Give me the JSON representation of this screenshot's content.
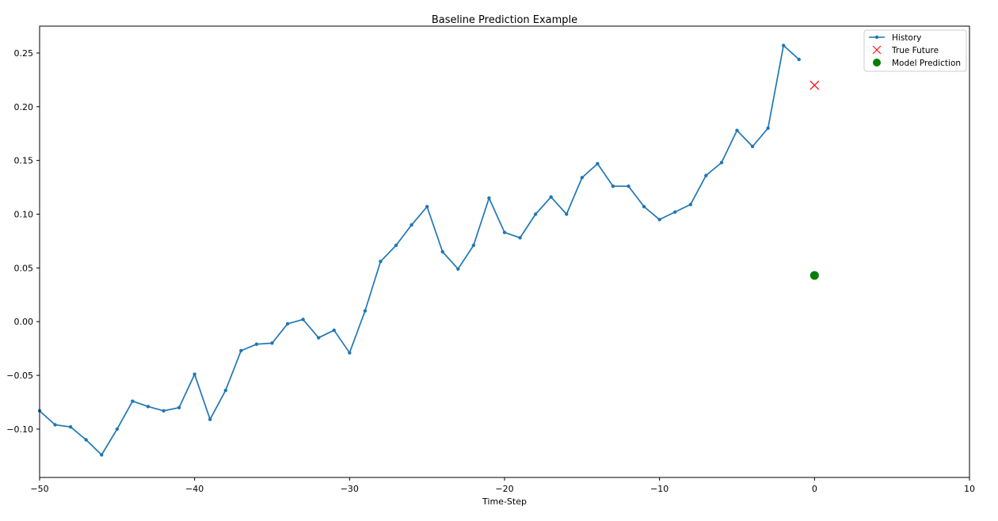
{
  "chart_data": {
    "type": "line",
    "title": "Baseline Prediction Example",
    "xlabel": "Time-Step",
    "ylabel": "",
    "xlim": [
      -50,
      10
    ],
    "ylim": [
      -0.145,
      0.275
    ],
    "xticks": [
      -50,
      -40,
      -30,
      -20,
      -10,
      0,
      10
    ],
    "xtick_labels": [
      "−50",
      "−40",
      "−30",
      "−20",
      "−10",
      "0",
      "10"
    ],
    "yticks": [
      -0.1,
      -0.05,
      0.0,
      0.05,
      0.1,
      0.15,
      0.2,
      0.25
    ],
    "ytick_labels": [
      "−0.10",
      "−0.05",
      "0.00",
      "0.05",
      "0.10",
      "0.15",
      "0.20",
      "0.25"
    ],
    "grid": false,
    "legend_position": "top-right",
    "series": [
      {
        "name": "History",
        "kind": "line-with-point-markers",
        "color": "#1f77b4",
        "x": [
          -50,
          -49,
          -48,
          -47,
          -46,
          -45,
          -44,
          -43,
          -42,
          -41,
          -40,
          -39,
          -38,
          -37,
          -36,
          -35,
          -34,
          -33,
          -32,
          -31,
          -30,
          -29,
          -28,
          -27,
          -26,
          -25,
          -24,
          -23,
          -22,
          -21,
          -20,
          -19,
          -18,
          -17,
          -16,
          -15,
          -14,
          -13,
          -12,
          -11,
          -10,
          -9,
          -8,
          -7,
          -6,
          -5,
          -4,
          -3,
          -2,
          -1
        ],
        "y": [
          -0.083,
          -0.096,
          -0.098,
          -0.11,
          -0.124,
          -0.1,
          -0.074,
          -0.079,
          -0.083,
          -0.08,
          -0.049,
          -0.091,
          -0.064,
          -0.027,
          -0.021,
          -0.02,
          -0.002,
          0.002,
          -0.015,
          -0.008,
          -0.029,
          0.01,
          0.056,
          0.071,
          0.09,
          0.107,
          0.065,
          0.049,
          0.071,
          0.115,
          0.083,
          0.078,
          0.1,
          0.116,
          0.1,
          0.134,
          0.147,
          0.126,
          0.126,
          0.107,
          0.095,
          0.102,
          0.109,
          0.136,
          0.148,
          0.178,
          0.163,
          0.18,
          0.257,
          0.244
        ]
      },
      {
        "name": "True Future",
        "kind": "x-marker",
        "color": "#ff0000",
        "x": [
          0
        ],
        "y": [
          0.22
        ]
      },
      {
        "name": "Model Prediction",
        "kind": "circle-marker",
        "color": "#008000",
        "x": [
          0
        ],
        "y": [
          0.043
        ]
      }
    ]
  }
}
